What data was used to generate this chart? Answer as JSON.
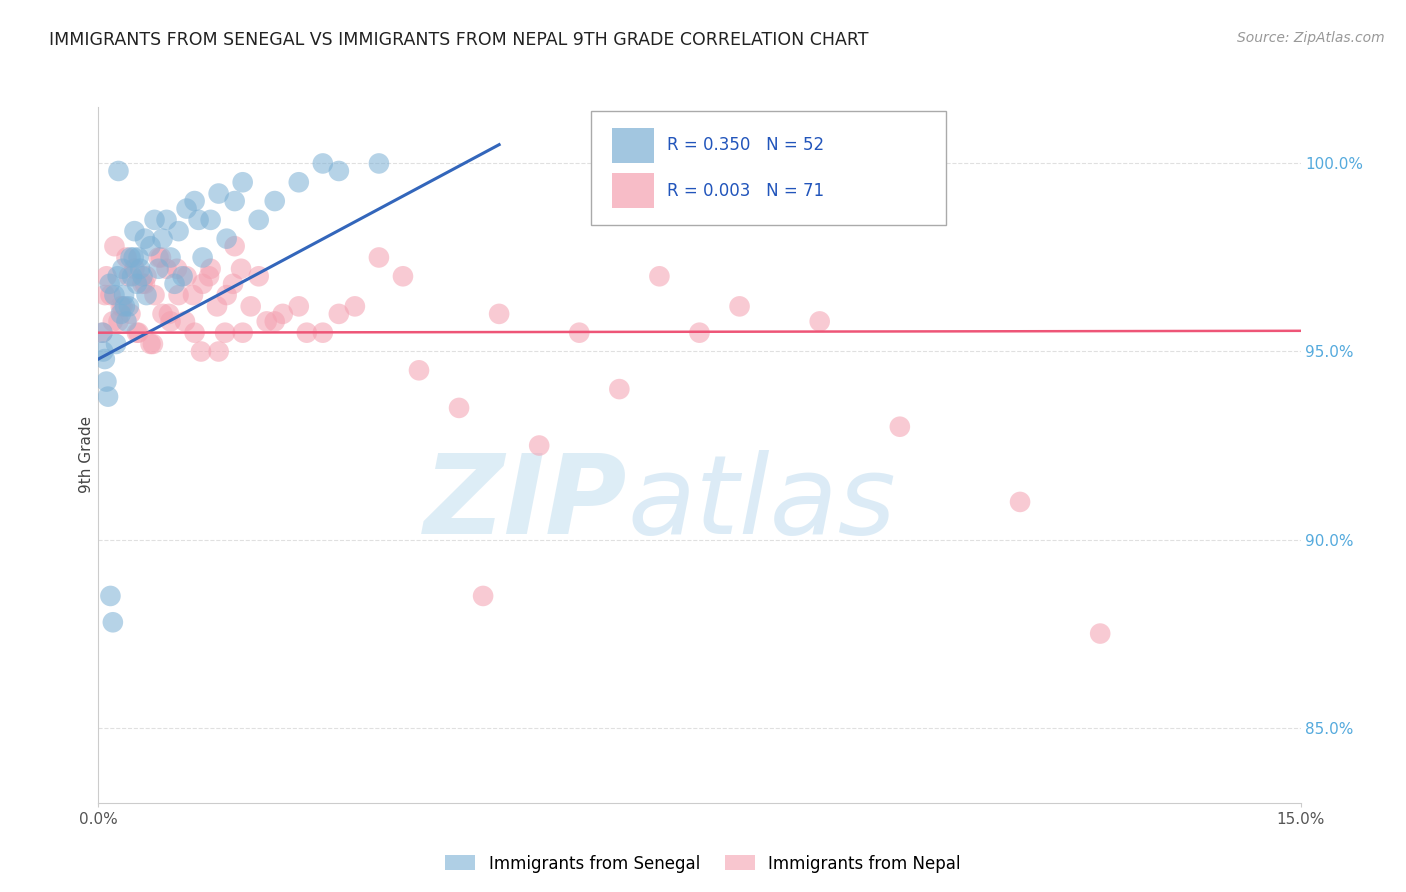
{
  "title": "IMMIGRANTS FROM SENEGAL VS IMMIGRANTS FROM NEPAL 9TH GRADE CORRELATION CHART",
  "source": "Source: ZipAtlas.com",
  "ylabel": "9th Grade",
  "xmin": 0.0,
  "xmax": 15.0,
  "ymin": 83.0,
  "ymax": 101.5,
  "yticks": [
    85.0,
    90.0,
    95.0,
    100.0
  ],
  "ytick_labels": [
    "85.0%",
    "90.0%",
    "95.0%",
    "100.0%"
  ],
  "legend_R1": "R = 0.350",
  "legend_N1": "N = 52",
  "legend_R2": "R = 0.003",
  "legend_N2": "N = 71",
  "color_blue": "#7BAFD4",
  "color_pink": "#F4A0B0",
  "color_blue_line": "#3366BB",
  "color_pink_line": "#EE5577",
  "color_grid": "#CCCCCC",
  "color_right_axis": "#55AADD",
  "senegal_x": [
    0.05,
    0.08,
    0.1,
    0.12,
    0.15,
    0.18,
    0.2,
    0.22,
    0.25,
    0.28,
    0.3,
    0.32,
    0.35,
    0.38,
    0.4,
    0.42,
    0.45,
    0.48,
    0.5,
    0.55,
    0.58,
    0.6,
    0.65,
    0.7,
    0.75,
    0.8,
    0.85,
    0.9,
    0.95,
    1.0,
    1.05,
    1.1,
    1.2,
    1.3,
    1.4,
    1.5,
    1.6,
    1.7,
    1.8,
    2.0,
    2.2,
    2.5,
    2.8,
    3.0,
    3.5,
    0.06,
    0.14,
    0.24,
    0.33,
    0.44,
    0.52,
    1.25
  ],
  "senegal_y": [
    95.5,
    94.8,
    94.2,
    93.8,
    88.5,
    87.8,
    96.5,
    95.2,
    99.8,
    96.0,
    97.2,
    96.5,
    95.8,
    96.2,
    97.5,
    97.0,
    98.2,
    96.8,
    97.5,
    97.0,
    98.0,
    96.5,
    97.8,
    98.5,
    97.2,
    98.0,
    98.5,
    97.5,
    96.8,
    98.2,
    97.0,
    98.8,
    99.0,
    97.5,
    98.5,
    99.2,
    98.0,
    99.0,
    99.5,
    98.5,
    99.0,
    99.5,
    100.0,
    99.8,
    100.0,
    95.0,
    96.8,
    97.0,
    96.2,
    97.5,
    97.2,
    98.5
  ],
  "nepal_x": [
    0.05,
    0.1,
    0.15,
    0.2,
    0.25,
    0.3,
    0.35,
    0.4,
    0.45,
    0.5,
    0.55,
    0.6,
    0.65,
    0.7,
    0.75,
    0.8,
    0.85,
    0.9,
    1.0,
    1.1,
    1.2,
    1.3,
    1.4,
    1.5,
    1.6,
    1.7,
    1.8,
    1.9,
    2.0,
    2.2,
    2.5,
    2.8,
    3.0,
    3.5,
    4.0,
    4.5,
    5.0,
    5.5,
    6.0,
    6.5,
    7.0,
    7.5,
    8.0,
    9.0,
    10.0,
    11.5,
    0.08,
    0.18,
    0.28,
    0.38,
    0.48,
    0.58,
    0.68,
    0.78,
    0.88,
    0.98,
    1.08,
    1.18,
    1.28,
    1.38,
    1.48,
    1.58,
    1.68,
    1.78,
    2.1,
    2.3,
    2.6,
    3.2,
    3.8,
    12.5,
    4.8
  ],
  "nepal_y": [
    95.5,
    97.0,
    96.5,
    97.8,
    95.8,
    96.2,
    97.5,
    96.0,
    97.2,
    95.5,
    96.8,
    97.0,
    95.2,
    96.5,
    97.5,
    96.0,
    97.2,
    95.8,
    96.5,
    97.0,
    95.5,
    96.8,
    97.2,
    95.0,
    96.5,
    97.8,
    95.5,
    96.2,
    97.0,
    95.8,
    96.2,
    95.5,
    96.0,
    97.5,
    94.5,
    93.5,
    96.0,
    92.5,
    95.5,
    94.0,
    97.0,
    95.5,
    96.2,
    95.8,
    93.0,
    91.0,
    96.5,
    95.8,
    96.2,
    97.0,
    95.5,
    96.8,
    95.2,
    97.5,
    96.0,
    97.2,
    95.8,
    96.5,
    95.0,
    97.0,
    96.2,
    95.5,
    96.8,
    97.2,
    95.8,
    96.0,
    95.5,
    96.2,
    97.0,
    87.5,
    88.5
  ],
  "blue_trendline_x0": 0.0,
  "blue_trendline_y0": 94.8,
  "blue_trendline_x1": 5.0,
  "blue_trendline_y1": 100.5,
  "pink_trendline_x0": 0.0,
  "pink_trendline_x1": 15.0,
  "pink_trendline_y0": 95.5,
  "pink_trendline_y1": 95.55
}
